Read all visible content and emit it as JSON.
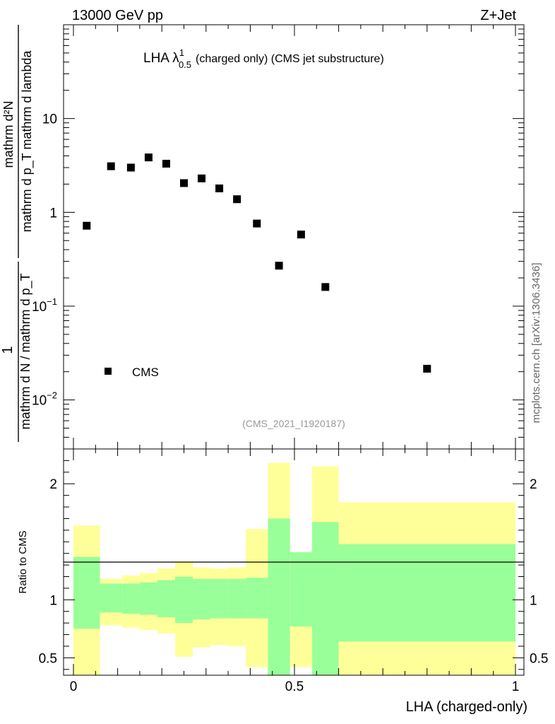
{
  "header": {
    "left": "13000 GeV pp",
    "right": "Z+Jet"
  },
  "chart_data": {
    "type": "scatter",
    "title_parts": {
      "main": "LHA λ",
      "sup": "1",
      "sub": "0.5",
      "rest": "(charged only) (CMS jet substructure)"
    },
    "ylabel_top": "mathrm d²N",
    "ylabel_bottom": "mathrm d p_T mathrm d lambda",
    "ylabel_prefix_num": "1",
    "ylabel_prefix_den": "mathrm d N / mathrm d p_T",
    "ylim": [
      0.003,
      100
    ],
    "y_ticks": [
      {
        "value": 10,
        "base": "10",
        "exp": ""
      },
      {
        "value": 1,
        "base": "1",
        "exp": ""
      },
      {
        "value": 0.1,
        "base": "10",
        "exp": "−1"
      },
      {
        "value": 0.01,
        "base": "10",
        "exp": "−2"
      }
    ],
    "series": [
      {
        "name": "CMS",
        "x": [
          0.03,
          0.085,
          0.13,
          0.17,
          0.21,
          0.25,
          0.29,
          0.33,
          0.37,
          0.415,
          0.465,
          0.515,
          0.57,
          0.8
        ],
        "y": [
          0.72,
          3.1,
          3.0,
          3.85,
          3.3,
          2.05,
          2.3,
          1.8,
          1.38,
          0.76,
          0.27,
          0.58,
          0.16,
          0.0215
        ]
      }
    ],
    "legend": "CMS",
    "watermark": "(CMS_2021_I1920187)",
    "side_label": "mcplots.cern.ch [arXiv:1306.3436]",
    "ratio": {
      "ylabel": "Ratio to CMS",
      "ylim": [
        0.35,
        2.3
      ],
      "y_ticks": [
        {
          "value": 0.5,
          "label": "0.5"
        },
        {
          "value": 1,
          "label": "1"
        },
        {
          "value": 2,
          "label": "2"
        }
      ],
      "x_ticks": [
        {
          "value": 0,
          "label": "0"
        },
        {
          "value": 0.5,
          "label": "0.5"
        },
        {
          "value": 1,
          "label": "1"
        }
      ],
      "xlabel": "LHA (charged-only)",
      "colors": {
        "outer": "#ffff99",
        "inner": "#99ff99"
      },
      "bins": [
        {
          "x0": 0.0,
          "x1": 0.06,
          "olo": 0.35,
          "ohi": 1.64,
          "ilo": 0.75,
          "ihi": 1.37
        },
        {
          "x0": 0.06,
          "x1": 0.11,
          "olo": 0.78,
          "ohi": 1.18,
          "ilo": 0.89,
          "ihi": 1.14
        },
        {
          "x0": 0.11,
          "x1": 0.15,
          "olo": 0.76,
          "ohi": 1.21,
          "ilo": 0.88,
          "ihi": 1.14
        },
        {
          "x0": 0.15,
          "x1": 0.19,
          "olo": 0.74,
          "ohi": 1.23,
          "ilo": 0.87,
          "ihi": 1.15
        },
        {
          "x0": 0.19,
          "x1": 0.23,
          "olo": 0.71,
          "ohi": 1.27,
          "ilo": 0.85,
          "ihi": 1.17
        },
        {
          "x0": 0.23,
          "x1": 0.27,
          "olo": 0.51,
          "ohi": 1.33,
          "ilo": 0.8,
          "ihi": 1.2
        },
        {
          "x0": 0.27,
          "x1": 0.31,
          "olo": 0.59,
          "ohi": 1.28,
          "ilo": 0.83,
          "ihi": 1.18
        },
        {
          "x0": 0.31,
          "x1": 0.35,
          "olo": 0.61,
          "ohi": 1.27,
          "ilo": 0.84,
          "ihi": 1.18
        },
        {
          "x0": 0.35,
          "x1": 0.39,
          "olo": 0.6,
          "ohi": 1.28,
          "ilo": 0.84,
          "ihi": 1.18
        },
        {
          "x0": 0.39,
          "x1": 0.44,
          "olo": 0.42,
          "ohi": 1.61,
          "ilo": 0.84,
          "ihi": 1.19
        },
        {
          "x0": 0.44,
          "x1": 0.49,
          "olo": 0.35,
          "ohi": 2.18,
          "ilo": 0.35,
          "ihi": 1.7
        },
        {
          "x0": 0.49,
          "x1": 0.54,
          "olo": 0.42,
          "ohi": 1.41,
          "ilo": 0.77,
          "ihi": 1.41
        },
        {
          "x0": 0.54,
          "x1": 0.6,
          "olo": 0.35,
          "ohi": 2.15,
          "ilo": 0.35,
          "ihi": 1.67
        },
        {
          "x0": 0.6,
          "x1": 1.0,
          "olo": 0.35,
          "ohi": 1.84,
          "ilo": 0.64,
          "ihi": 1.48
        }
      ]
    }
  }
}
